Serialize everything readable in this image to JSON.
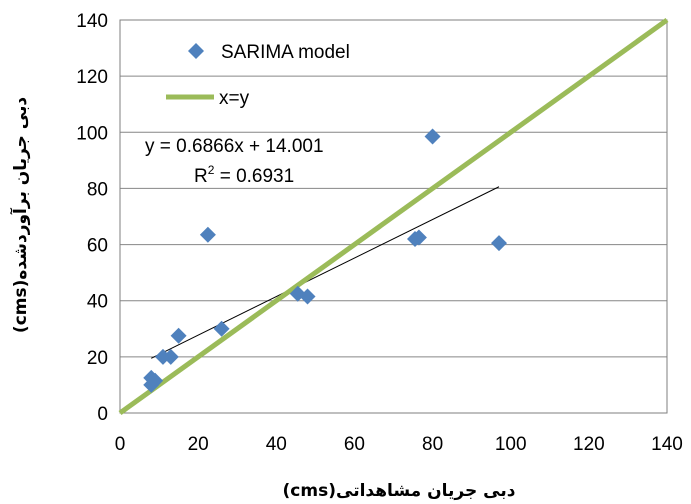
{
  "chart_data": {
    "type": "scatter",
    "xlabel": "دبی جریان مشاهداتی(cms)",
    "ylabel": "دبی جریان برآوردشده(cms)",
    "xlim": [
      0,
      140
    ],
    "ylim": [
      0,
      140
    ],
    "x_ticks": [
      "0",
      "20",
      "40",
      "60",
      "80",
      "100",
      "120",
      "140"
    ],
    "y_ticks": [
      "0",
      "20",
      "40",
      "60",
      "80",
      "100",
      "120",
      "140"
    ],
    "grid": "horizontal",
    "legend_position": "top-left",
    "series": [
      {
        "name": "SARIMA model",
        "marker": "diamond",
        "color": "#4f81bd",
        "points": [
          {
            "x": 8,
            "y": 10
          },
          {
            "x": 8,
            "y": 12.5
          },
          {
            "x": 9,
            "y": 11.5
          },
          {
            "x": 11,
            "y": 20
          },
          {
            "x": 13,
            "y": 20
          },
          {
            "x": 15,
            "y": 27.5
          },
          {
            "x": 22.5,
            "y": 63.5
          },
          {
            "x": 26,
            "y": 30
          },
          {
            "x": 45.5,
            "y": 42.5
          },
          {
            "x": 48,
            "y": 41.5
          },
          {
            "x": 75.5,
            "y": 62
          },
          {
            "x": 76.5,
            "y": 62.5
          },
          {
            "x": 80,
            "y": 98.5
          },
          {
            "x": 97,
            "y": 60.5
          }
        ]
      },
      {
        "name": "x=y",
        "type": "line",
        "color": "#9bbb59",
        "points": [
          {
            "x": 0,
            "y": 0
          },
          {
            "x": 140,
            "y": 140
          }
        ]
      },
      {
        "type": "trendline",
        "color": "#000000",
        "slope": 0.6866,
        "intercept": 14.001,
        "x_range": [
          8,
          97
        ]
      }
    ],
    "annotations": {
      "equation": "y = 0.6866x + 14.001",
      "r2_prefix": "R",
      "r2_sup": "2",
      "r2_value": " = 0.6931"
    }
  }
}
